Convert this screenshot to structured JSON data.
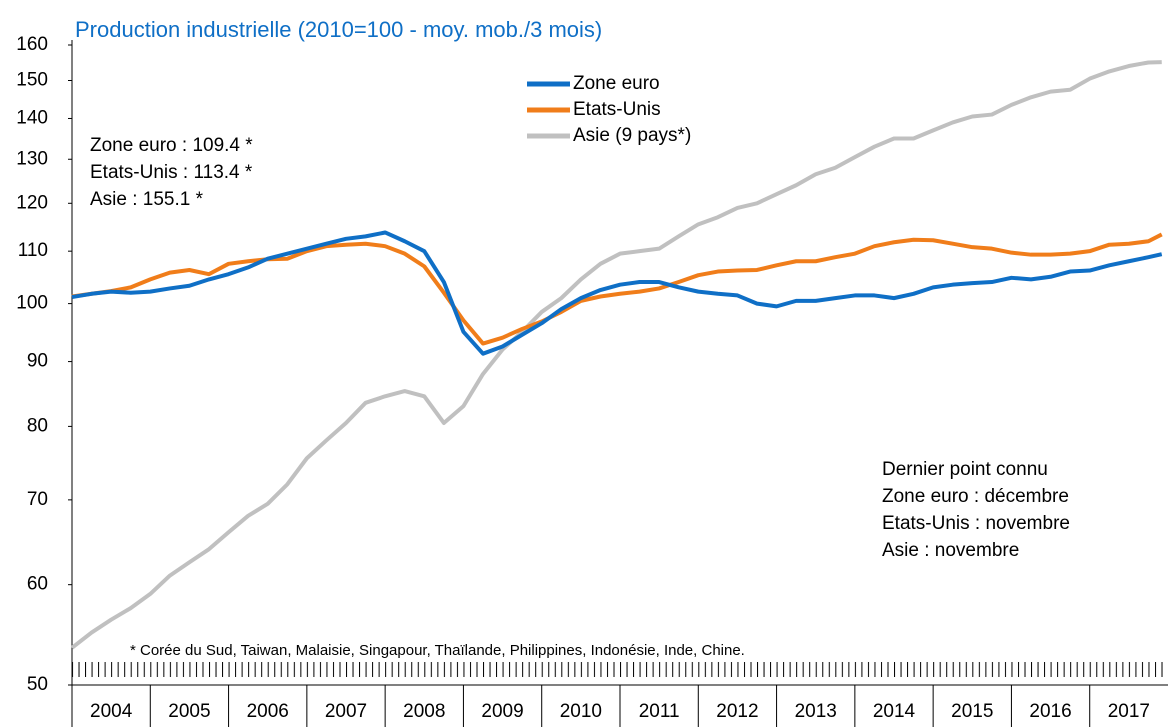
{
  "chart_data": {
    "type": "line",
    "title": "Production industrielle (2010=100 - moy. mob./3 mois)",
    "log_scale": true,
    "ylim": [
      50,
      160
    ],
    "yticks": [
      50,
      60,
      70,
      80,
      90,
      100,
      110,
      120,
      130,
      140,
      150,
      160
    ],
    "xlim": [
      2004,
      2018
    ],
    "xticks": [
      {
        "value": 2004.5,
        "label": "2004"
      },
      {
        "value": 2005.5,
        "label": "2005"
      },
      {
        "value": 2006.5,
        "label": "2006"
      },
      {
        "value": 2007.5,
        "label": "2007"
      },
      {
        "value": 2008.5,
        "label": "2008"
      },
      {
        "value": 2009.5,
        "label": "2009"
      },
      {
        "value": 2010.5,
        "label": "2010"
      },
      {
        "value": 2011.5,
        "label": "2011"
      },
      {
        "value": 2012.5,
        "label": "2012"
      },
      {
        "value": 2013.5,
        "label": "2013"
      },
      {
        "value": 2014.5,
        "label": "2014"
      },
      {
        "value": 2015.5,
        "label": "2015"
      },
      {
        "value": 2016.5,
        "label": "2016"
      },
      {
        "value": 2017.5,
        "label": "2017"
      }
    ],
    "x": [
      2004,
      2004.25,
      2004.5,
      2004.75,
      2005,
      2005.25,
      2005.5,
      2005.75,
      2006,
      2006.25,
      2006.5,
      2006.75,
      2007,
      2007.25,
      2007.5,
      2007.75,
      2008,
      2008.25,
      2008.5,
      2008.75,
      2009,
      2009.25,
      2009.5,
      2009.75,
      2010,
      2010.25,
      2010.5,
      2010.75,
      2011,
      2011.25,
      2011.5,
      2011.75,
      2012,
      2012.25,
      2012.5,
      2012.75,
      2013,
      2013.25,
      2013.5,
      2013.75,
      2014,
      2014.25,
      2014.5,
      2014.75,
      2015,
      2015.25,
      2015.5,
      2015.75,
      2016,
      2016.25,
      2016.5,
      2016.75,
      2017,
      2017.25,
      2017.5,
      2017.75,
      2017.92
    ],
    "series": [
      {
        "name": "Asie (9 pays*)",
        "color": "#c0c0c0",
        "values": [
          53.5,
          55,
          56.3,
          57.5,
          59,
          61,
          62.5,
          64,
          66,
          68,
          69.5,
          72,
          75.5,
          78,
          80.5,
          83.5,
          84.5,
          85.3,
          84.5,
          80.5,
          83,
          88,
          92,
          95,
          98.5,
          101,
          104.5,
          107.5,
          109.5,
          110,
          110.5,
          113,
          115.5,
          117,
          119,
          120,
          122,
          124,
          126.5,
          128,
          130.5,
          133,
          135,
          135,
          137,
          139,
          140.5,
          141,
          143.5,
          145.5,
          147,
          147.5,
          150.5,
          152.5,
          154,
          155,
          155.1
        ]
      },
      {
        "name": "Etats-Unis",
        "color": "#f07d1a",
        "values": [
          101.3,
          101.8,
          102.3,
          103,
          104.5,
          105.8,
          106.3,
          105.5,
          107.5,
          108,
          108.4,
          108.5,
          110,
          111,
          111.3,
          111.5,
          111,
          109.5,
          107,
          102,
          97,
          93,
          94,
          95.5,
          96.8,
          98.5,
          100.5,
          101.3,
          101.8,
          102.2,
          102.8,
          104,
          105.3,
          106,
          106.2,
          106.3,
          107.2,
          108,
          108,
          108.8,
          109.5,
          111,
          111.8,
          112.3,
          112.2,
          111.5,
          110.8,
          110.5,
          109.7,
          109.3,
          109.3,
          109.5,
          110,
          111.3,
          111.5,
          112,
          113.4
        ]
      },
      {
        "name": "Zone euro",
        "color": "#0f6fc6",
        "values": [
          101.2,
          101.8,
          102.2,
          102,
          102.2,
          102.8,
          103.3,
          104.5,
          105.5,
          106.8,
          108.5,
          109.5,
          110.5,
          111.5,
          112.5,
          113,
          113.8,
          112,
          110,
          104,
          95,
          91.3,
          92.5,
          94.5,
          96.5,
          99,
          101,
          102.5,
          103.5,
          104,
          104,
          103,
          102.2,
          101.8,
          101.5,
          100,
          99.5,
          100.5,
          100.5,
          101,
          101.5,
          101.5,
          101,
          101.8,
          103,
          103.5,
          103.8,
          104,
          104.8,
          104.5,
          105,
          106,
          106.2,
          107.2,
          108,
          108.8,
          109.4
        ]
      }
    ],
    "legend_order": [
      "Zone euro",
      "Etats-Unis",
      "Asie (9 pays*)"
    ],
    "annotations": {
      "last_values": [
        "Zone euro : 109.4 *",
        "Etats-Unis : 113.4 *",
        "Asie : 155.1 *"
      ],
      "last_known": [
        "Dernier point connu",
        "Zone euro : décembre",
        "Etats-Unis : novembre",
        "Asie : novembre"
      ],
      "footnote": "* Corée du Sud, Taiwan, Malaisie, Singapour, Thaïlande, Philippines, Indonésie, Inde, Chine."
    }
  }
}
